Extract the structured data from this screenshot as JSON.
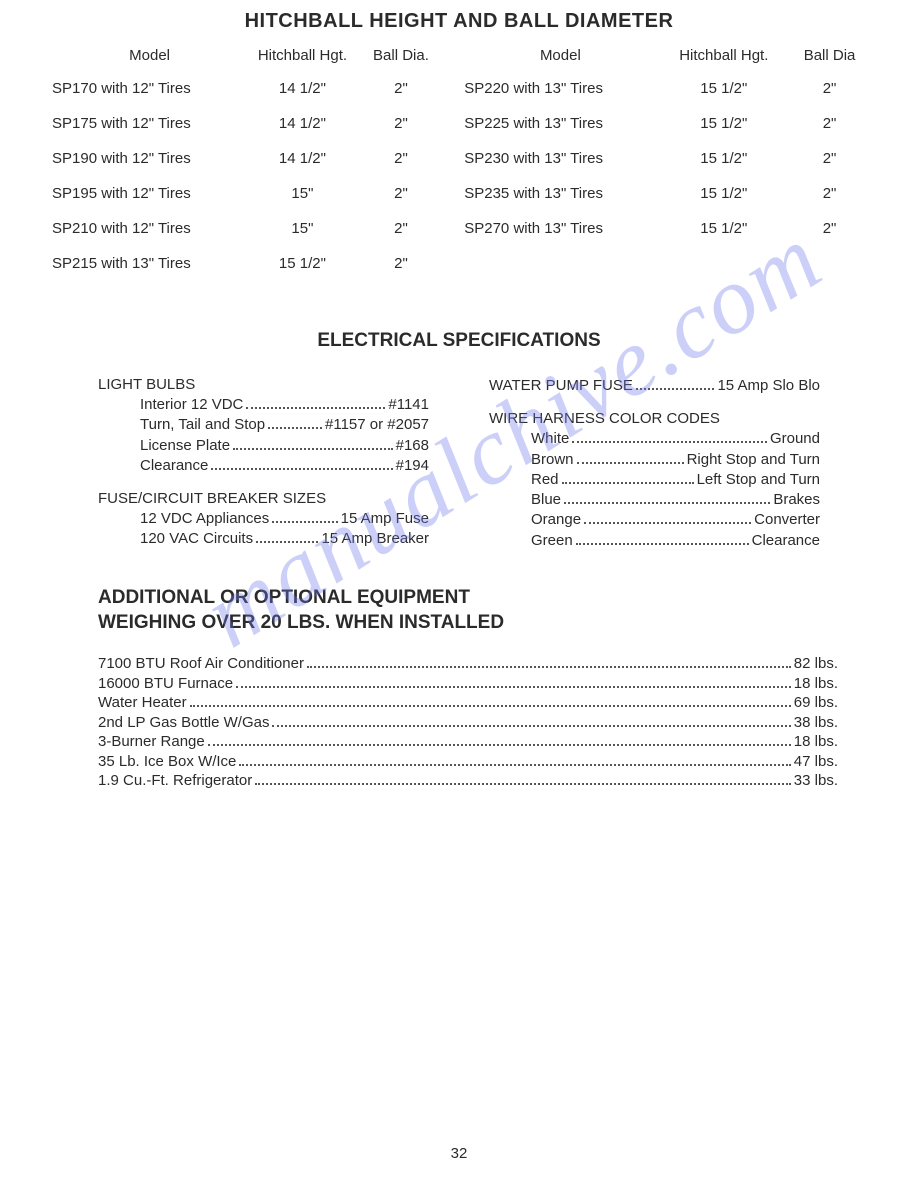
{
  "watermark": "manualchive.com",
  "page_number": "32",
  "hitchball": {
    "title": "HITCHBALL HEIGHT AND BALL DIAMETER",
    "headers": {
      "model": "Model",
      "hgt": "Hitchball Hgt.",
      "dia": "Ball Dia.",
      "dia_r": "Ball Dia"
    },
    "left_rows": [
      {
        "model": "SP170 with  12\" Tires",
        "hgt": "14 1/2\"",
        "dia": "2\""
      },
      {
        "model": "SP175 with 12\" Tires",
        "hgt": "14 1/2\"",
        "dia": "2\""
      },
      {
        "model": "SP190 with  12\" Tires",
        "hgt": "14 1/2\"",
        "dia": "2\""
      },
      {
        "model": "SP195 with 12\" Tires",
        "hgt": "15\"",
        "dia": "2\""
      },
      {
        "model": "SP210 with 12\" Tires",
        "hgt": "15\"",
        "dia": "2\""
      },
      {
        "model": "SP215 with 13\" Tires",
        "hgt": "15 1/2\"",
        "dia": "2\""
      }
    ],
    "right_rows": [
      {
        "model": "SP220 with 13\" Tires",
        "hgt": "15 1/2\"",
        "dia": "2\""
      },
      {
        "model": "SP225 with 13\" Tires",
        "hgt": "15 1/2\"",
        "dia": "2\""
      },
      {
        "model": "SP230 with 13\" Tires",
        "hgt": "15 1/2\"",
        "dia": "2\""
      },
      {
        "model": "SP235 with 13\" Tires",
        "hgt": "15 1/2\"",
        "dia": "2\""
      },
      {
        "model": "SP270 with 13\" Tires",
        "hgt": "15 1/2\"",
        "dia": "2\""
      }
    ]
  },
  "electrical": {
    "title": "ELECTRICAL SPECIFICATIONS",
    "left": {
      "bulbs_head": "LIGHT BULBS",
      "bulbs": [
        {
          "label": "Interior 12 VDC",
          "value": "#1141"
        },
        {
          "label": "Turn, Tail and Stop",
          "value": "#1157 or #2057"
        },
        {
          "label": "License Plate",
          "value": "#168"
        },
        {
          "label": "Clearance",
          "value": "#194"
        }
      ],
      "fuse_head": "FUSE/CIRCUIT BREAKER SIZES",
      "fuses": [
        {
          "label": "12 VDC Appliances",
          "value": "15 Amp Fuse"
        },
        {
          "label": "120 VAC Circuits",
          "value": "15 Amp Breaker"
        }
      ]
    },
    "right": {
      "pump": {
        "label": "WATER PUMP FUSE",
        "value": "15 Amp Slo Blo"
      },
      "wire_head": "WIRE HARNESS COLOR CODES",
      "wires": [
        {
          "label": "White",
          "value": "Ground"
        },
        {
          "label": "Brown",
          "value": "Right Stop and Turn"
        },
        {
          "label": "Red",
          "value": "Left Stop and Turn"
        },
        {
          "label": "Blue",
          "value": "Brakes"
        },
        {
          "label": "Orange",
          "value": "Converter"
        },
        {
          "label": "Green",
          "value": "Clearance"
        }
      ]
    }
  },
  "optional": {
    "title_1": "ADDITIONAL OR OPTIONAL EQUIPMENT",
    "title_2": "WEIGHING OVER 20 LBS. WHEN INSTALLED",
    "items": [
      {
        "label": "7100 BTU Roof Air Conditioner",
        "value": "82 lbs."
      },
      {
        "label": "16000 BTU Furnace",
        "value": "18 lbs."
      },
      {
        "label": "Water Heater",
        "value": "69 lbs."
      },
      {
        "label": "2nd LP Gas Bottle W/Gas",
        "value": "38 lbs."
      },
      {
        "label": "3-Burner Range",
        "value": "18 lbs."
      },
      {
        "label": "35 Lb. Ice Box W/Ice",
        "value": "47 lbs."
      },
      {
        "label": "1.9 Cu.-Ft. Refrigerator",
        "value": "33 lbs."
      }
    ]
  }
}
